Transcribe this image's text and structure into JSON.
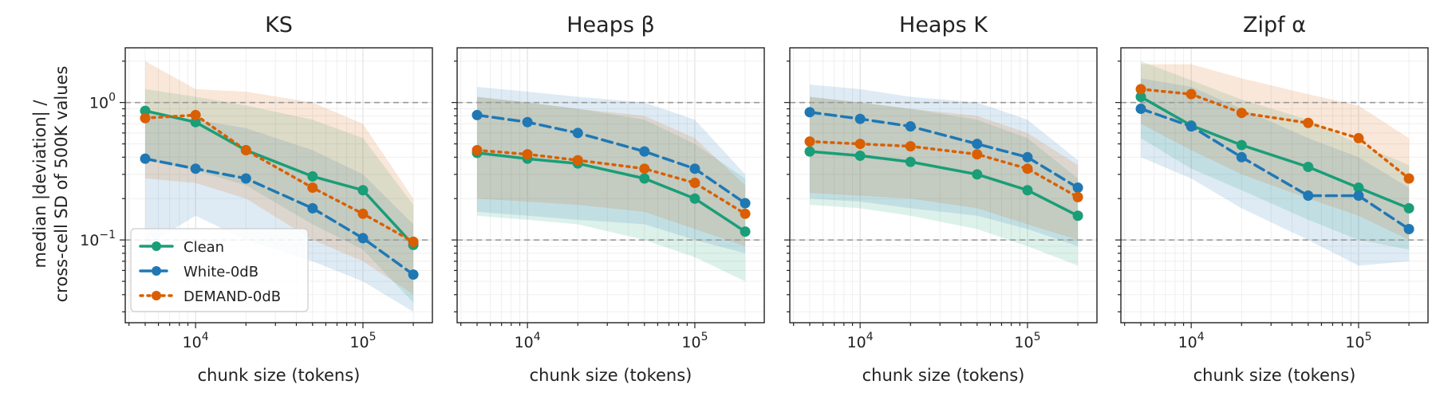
{
  "figure": {
    "ylabel_lines": [
      "median |deviation| /",
      "cross-cell SD of 500K values"
    ]
  },
  "colors": {
    "Clean": "#1a9e77",
    "White-0dB": "#1f78b4",
    "DEMAND-0dB": "#d95f02",
    "refline": "#9a9a9a"
  },
  "chart_data": [
    {
      "type": "line",
      "title": "KS",
      "xlabel": "chunk size (tokens)",
      "xscale": "log",
      "yscale": "log",
      "xlim": [
        3800,
        260000
      ],
      "ylim": [
        0.025,
        2.5
      ],
      "xticks": [
        {
          "value": 10000,
          "base": "10",
          "exp": "4"
        },
        {
          "value": 100000,
          "base": "10",
          "exp": "5"
        }
      ],
      "yticks": [
        {
          "value": 0.1,
          "base": "10",
          "exp": "−1"
        },
        {
          "value": 1,
          "base": "10",
          "exp": "0"
        }
      ],
      "ref_lines": [
        0.1,
        1
      ],
      "x": [
        5000,
        10000,
        20000,
        50000,
        100000,
        200000
      ],
      "grid": true,
      "legend": {
        "position": "lower-left",
        "entries": [
          "Clean",
          "White-0dB",
          "DEMAND-0dB"
        ]
      },
      "series": [
        {
          "name": "Clean",
          "style": "solid",
          "values": [
            0.87,
            0.72,
            0.45,
            0.29,
            0.23,
            0.092
          ],
          "band_low": [
            0.38,
            0.32,
            0.25,
            0.13,
            0.085,
            0.035
          ],
          "band_high": [
            1.25,
            1.1,
            0.95,
            0.75,
            0.55,
            0.18
          ]
        },
        {
          "name": "White-0dB",
          "style": "dashed",
          "values": [
            0.39,
            0.33,
            0.28,
            0.17,
            0.103,
            0.056
          ],
          "band_low": [
            0.09,
            0.15,
            0.1,
            0.07,
            0.05,
            0.03
          ],
          "band_high": [
            0.85,
            0.75,
            0.65,
            0.45,
            0.3,
            0.13
          ]
        },
        {
          "name": "DEMAND-0dB",
          "style": "dotted",
          "values": [
            0.77,
            0.81,
            0.45,
            0.24,
            0.155,
            0.097
          ],
          "band_low": [
            0.28,
            0.26,
            0.2,
            0.1,
            0.07,
            0.04
          ],
          "band_high": [
            2.0,
            1.25,
            1.2,
            1.0,
            0.7,
            0.2
          ]
        }
      ]
    },
    {
      "type": "line",
      "title": "Heaps β",
      "xlabel": "chunk size (tokens)",
      "xscale": "log",
      "yscale": "log",
      "xlim": [
        3800,
        260000
      ],
      "ylim": [
        0.025,
        2.5
      ],
      "xticks": [
        {
          "value": 10000,
          "base": "10",
          "exp": "4"
        },
        {
          "value": 100000,
          "base": "10",
          "exp": "5"
        }
      ],
      "ref_lines": [
        0.1,
        1
      ],
      "x": [
        5000,
        10000,
        20000,
        50000,
        100000,
        200000
      ],
      "grid": true,
      "series": [
        {
          "name": "Clean",
          "style": "solid",
          "values": [
            0.43,
            0.39,
            0.36,
            0.28,
            0.2,
            0.115
          ],
          "band_low": [
            0.15,
            0.14,
            0.13,
            0.1,
            0.075,
            0.05
          ],
          "band_high": [
            1.1,
            1.0,
            0.9,
            0.75,
            0.5,
            0.28
          ]
        },
        {
          "name": "White-0dB",
          "style": "dashed",
          "values": [
            0.81,
            0.72,
            0.6,
            0.44,
            0.33,
            0.185
          ],
          "band_low": [
            0.16,
            0.15,
            0.14,
            0.13,
            0.1,
            0.08
          ],
          "band_high": [
            1.3,
            1.2,
            1.1,
            1.0,
            0.75,
            0.3
          ]
        },
        {
          "name": "DEMAND-0dB",
          "style": "dotted",
          "values": [
            0.45,
            0.42,
            0.38,
            0.33,
            0.26,
            0.155
          ],
          "band_low": [
            0.2,
            0.19,
            0.18,
            0.16,
            0.12,
            0.09
          ],
          "band_high": [
            1.1,
            1.0,
            0.9,
            0.8,
            0.55,
            0.25
          ]
        }
      ]
    },
    {
      "type": "line",
      "title": "Heaps K",
      "xlabel": "chunk size (tokens)",
      "xscale": "log",
      "yscale": "log",
      "xlim": [
        3800,
        260000
      ],
      "ylim": [
        0.025,
        2.5
      ],
      "xticks": [
        {
          "value": 10000,
          "base": "10",
          "exp": "4"
        },
        {
          "value": 100000,
          "base": "10",
          "exp": "5"
        }
      ],
      "ref_lines": [
        0.1,
        1
      ],
      "x": [
        5000,
        10000,
        20000,
        50000,
        100000,
        200000
      ],
      "grid": true,
      "series": [
        {
          "name": "Clean",
          "style": "solid",
          "values": [
            0.44,
            0.41,
            0.37,
            0.3,
            0.23,
            0.15
          ],
          "band_low": [
            0.18,
            0.17,
            0.15,
            0.12,
            0.09,
            0.065
          ],
          "band_high": [
            1.1,
            1.0,
            0.9,
            0.75,
            0.55,
            0.28
          ]
        },
        {
          "name": "White-0dB",
          "style": "dashed",
          "values": [
            0.85,
            0.76,
            0.67,
            0.5,
            0.4,
            0.24
          ],
          "band_low": [
            0.2,
            0.19,
            0.17,
            0.15,
            0.12,
            0.09
          ],
          "band_high": [
            1.35,
            1.25,
            1.1,
            1.0,
            0.75,
            0.38
          ]
        },
        {
          "name": "DEMAND-0dB",
          "style": "dotted",
          "values": [
            0.52,
            0.5,
            0.48,
            0.42,
            0.33,
            0.205
          ],
          "band_low": [
            0.22,
            0.21,
            0.2,
            0.17,
            0.13,
            0.1
          ],
          "band_high": [
            1.1,
            1.0,
            0.9,
            0.8,
            0.6,
            0.35
          ]
        }
      ]
    },
    {
      "type": "line",
      "title": "Zipf α",
      "xlabel": "chunk size (tokens)",
      "xscale": "log",
      "yscale": "log",
      "xlim": [
        3800,
        260000
      ],
      "ylim": [
        0.025,
        2.5
      ],
      "xticks": [
        {
          "value": 10000,
          "base": "10",
          "exp": "4"
        },
        {
          "value": 100000,
          "base": "10",
          "exp": "5"
        }
      ],
      "ref_lines": [
        0.1,
        1
      ],
      "x": [
        5000,
        10000,
        20000,
        50000,
        100000,
        200000
      ],
      "grid": true,
      "series": [
        {
          "name": "Clean",
          "style": "solid",
          "values": [
            1.1,
            0.68,
            0.49,
            0.34,
            0.24,
            0.17
          ],
          "band_low": [
            0.55,
            0.33,
            0.23,
            0.14,
            0.1,
            0.085
          ],
          "band_high": [
            2.0,
            1.45,
            1.05,
            0.75,
            0.5,
            0.35
          ]
        },
        {
          "name": "White-0dB",
          "style": "dashed",
          "values": [
            0.9,
            0.67,
            0.4,
            0.21,
            0.21,
            0.12
          ],
          "band_low": [
            0.4,
            0.28,
            0.17,
            0.1,
            0.065,
            0.07
          ],
          "band_high": [
            1.5,
            1.3,
            0.9,
            0.55,
            0.4,
            0.24
          ]
        },
        {
          "name": "DEMAND-0dB",
          "style": "dotted",
          "values": [
            1.25,
            1.15,
            0.84,
            0.71,
            0.55,
            0.28
          ],
          "band_low": [
            0.7,
            0.45,
            0.3,
            0.2,
            0.15,
            0.1
          ],
          "band_high": [
            1.9,
            1.9,
            1.5,
            1.15,
            0.95,
            0.55
          ]
        }
      ]
    }
  ]
}
